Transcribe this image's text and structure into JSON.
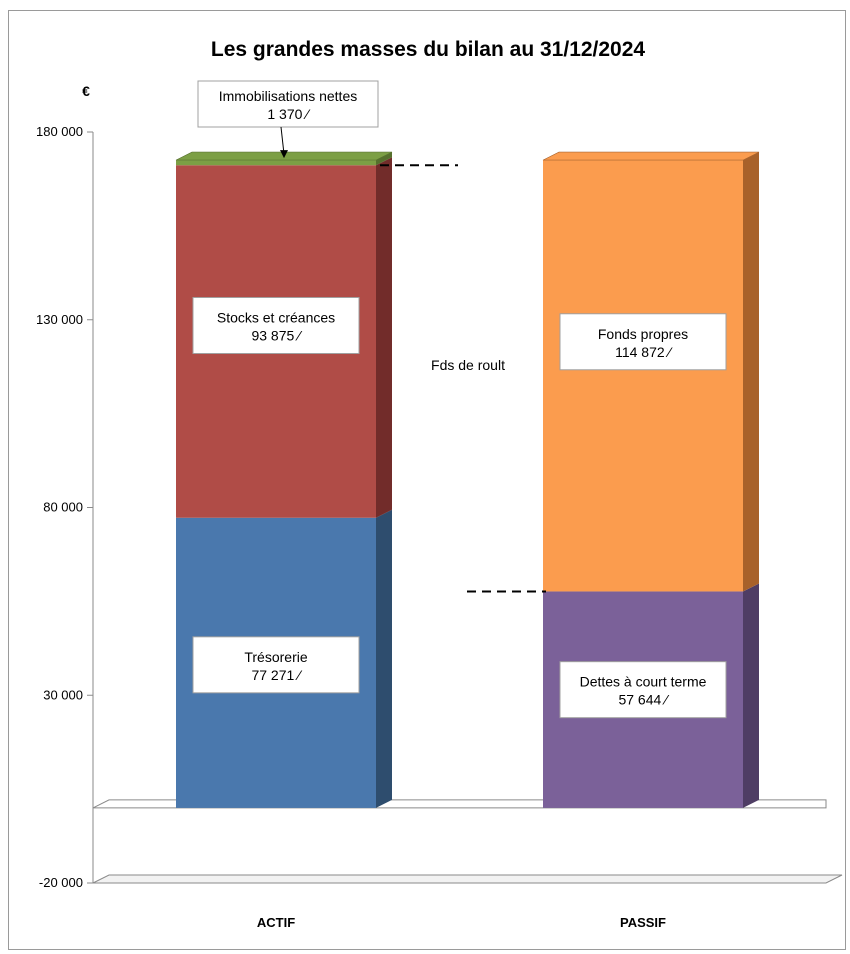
{
  "chart_data": {
    "type": "bar",
    "stacked": true,
    "three_d": true,
    "title": "Les grandes masses du bilan au 31/12/2024",
    "unit_label": "€",
    "ylim": [
      -20000,
      180000
    ],
    "y_ticks": [
      -20000,
      30000,
      80000,
      130000,
      180000
    ],
    "y_tick_labels": [
      "-20 000",
      "30 000",
      "80 000",
      "130 000",
      "180 000"
    ],
    "grid": false,
    "legend": "none",
    "categories": [
      "ACTIF",
      "PASSIF"
    ],
    "stacks": [
      {
        "category": "ACTIF",
        "segments": [
          {
            "name": "Trésorerie",
            "value": 77271,
            "label_name": "Trésorerie",
            "label_value": "77 271 ⁄",
            "color": "#4a78ad",
            "side_color": "#2e4d6e"
          },
          {
            "name": "Stocks et créances",
            "value": 93875,
            "label_name": "Stocks et créances",
            "label_value": "93 875 ⁄",
            "color": "#b04c47",
            "side_color": "#722c2a"
          },
          {
            "name": "Immobilisations nettes",
            "value": 1370,
            "label_name": "Immobilisations nettes",
            "label_value": "1 370 ⁄",
            "color": "#7c9f45",
            "side_color": "#56702d"
          }
        ]
      },
      {
        "category": "PASSIF",
        "segments": [
          {
            "name": "Dettes à court terme",
            "value": 57644,
            "label_name": "Dettes à court terme",
            "label_value": "57 644 ⁄",
            "color": "#7b6199",
            "side_color": "#4f3d64"
          },
          {
            "name": "Fonds propres",
            "value": 114872,
            "label_name": "Fonds propres",
            "label_value": "114 872 ⁄",
            "color": "#fb9c4e",
            "side_color": "#a8612a"
          }
        ]
      }
    ],
    "annotations": [
      {
        "text": "Fds de roult"
      }
    ]
  }
}
